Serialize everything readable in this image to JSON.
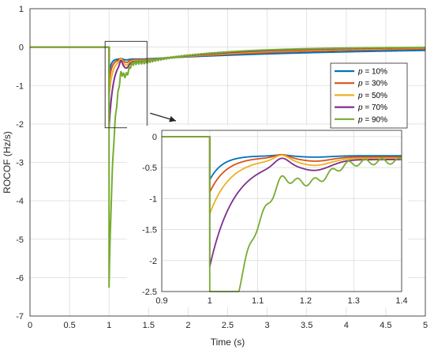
{
  "chart_data": {
    "type": "line",
    "xlabel": "Time (s)",
    "ylabel": "ROCOF (Hz/s)",
    "xlim": [
      0,
      5
    ],
    "ylim": [
      -7,
      1
    ],
    "xticks": [
      "0",
      "0.5",
      "1",
      "1.5",
      "2",
      "2.5",
      "3",
      "3.5",
      "4",
      "4.5",
      "5"
    ],
    "yticks": [
      "1",
      "0",
      "-1",
      "-2",
      "-3",
      "-4",
      "-5",
      "-6",
      "-7"
    ],
    "grid": true,
    "legend": {
      "position": "right",
      "var": "p",
      "entries": [
        "= 10%",
        "= 30%",
        "= 50%",
        "= 70%",
        "= 90%"
      ]
    },
    "series": [
      {
        "name": "p = 10%",
        "color": "#0072BD",
        "p": 0.1,
        "min": -0.7
      },
      {
        "name": "p = 30%",
        "color": "#D95319",
        "p": 0.3,
        "min": -0.9
      },
      {
        "name": "p = 50%",
        "color": "#EDB120",
        "p": 0.5,
        "min": -1.25
      },
      {
        "name": "p = 70%",
        "color": "#7E2F8E",
        "p": 0.7,
        "min": -2.1
      },
      {
        "name": "p = 90%",
        "color": "#77AC30",
        "p": 0.9,
        "min": -6.25
      }
    ],
    "zoom_box": {
      "xlim": [
        0.95,
        1.48
      ],
      "ylim": [
        -2.1,
        0.15
      ]
    },
    "inset": {
      "xlim": [
        0.9,
        1.4
      ],
      "ylim": [
        -2.5,
        0.1
      ],
      "xticks": [
        "0.9",
        "1",
        "1.1",
        "1.2",
        "1.3",
        "1.4"
      ],
      "yticks": [
        "0",
        "-0.5",
        "-1",
        "-1.5",
        "-2",
        "-2.5"
      ]
    }
  }
}
